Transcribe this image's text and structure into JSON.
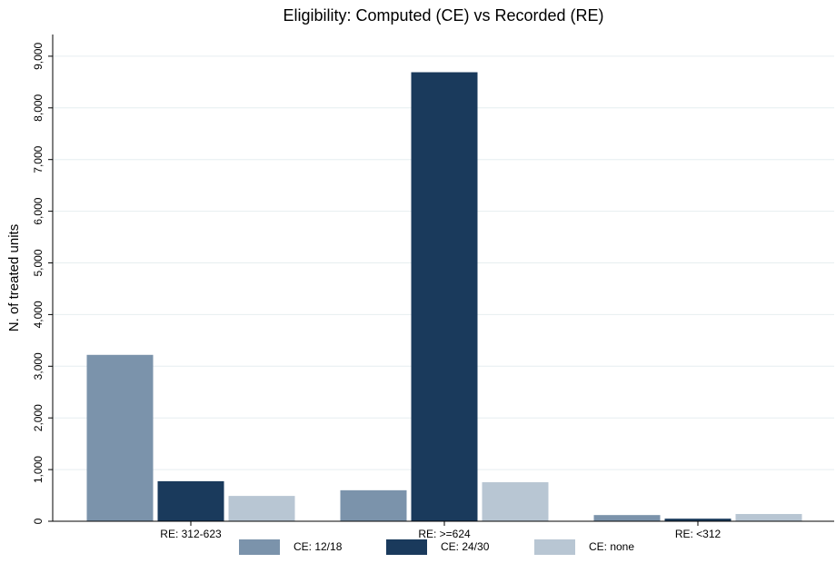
{
  "chart_data": {
    "type": "bar",
    "title": "Eligibility: Computed (CE) vs Recorded (RE)",
    "y_label": "N. of treated units",
    "categories": [
      "RE: 312-623",
      "RE: >=624",
      "RE: <312"
    ],
    "series": [
      {
        "name": "CE: 12/18",
        "color": "#7b93ab",
        "values": [
          3220,
          600,
          120
        ]
      },
      {
        "name": "CE: 24/30",
        "color": "#1a3a5c",
        "values": [
          775,
          8690,
          50
        ]
      },
      {
        "name": "CE: none",
        "color": "#b8c6d3",
        "values": [
          490,
          755,
          140
        ]
      }
    ],
    "ylim": [
      0,
      9420
    ],
    "yticks": [
      0,
      {
        "value": 1000,
        "label": "1,000"
      },
      {
        "value": 2000,
        "label": "2,000"
      },
      {
        "value": 3000,
        "label": "3,000"
      },
      {
        "value": 4000,
        "label": "4,000"
      },
      {
        "value": 5000,
        "label": "5,000"
      },
      {
        "value": 6000,
        "label": "6,000"
      },
      {
        "value": 7000,
        "label": "7,000"
      },
      {
        "value": 8000,
        "label": "8,000"
      },
      {
        "value": 9000,
        "label": "9,000"
      }
    ],
    "grid": true,
    "legend": "bottom"
  }
}
